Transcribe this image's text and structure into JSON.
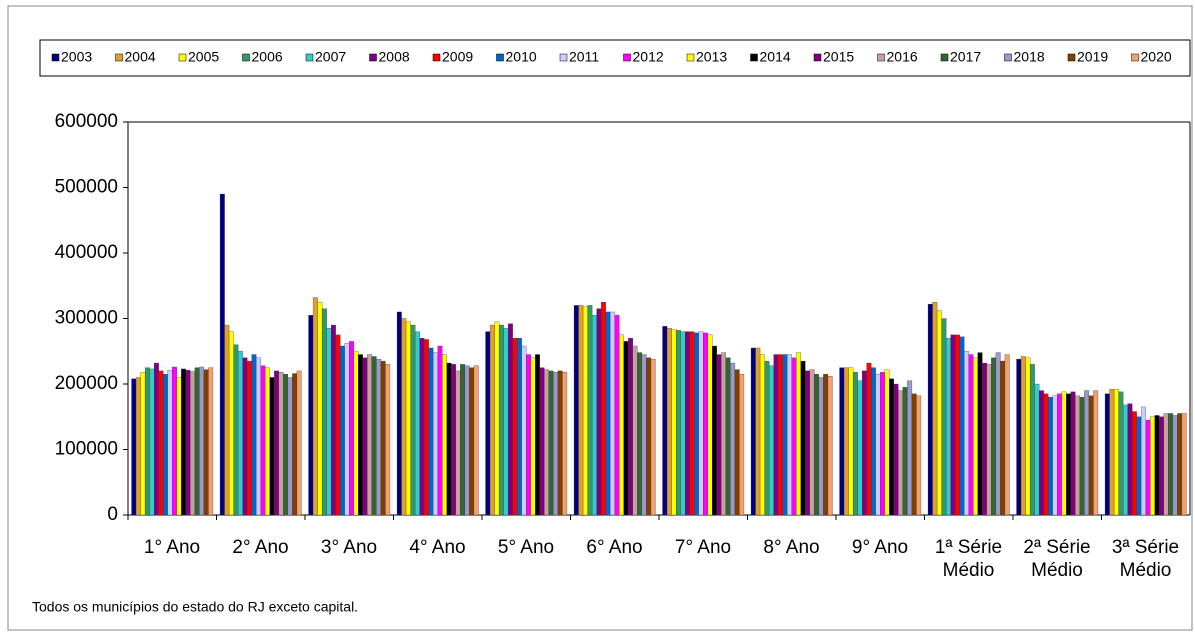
{
  "chart_data": {
    "type": "bar",
    "categories": [
      "1° Ano",
      "2° Ano",
      "3° Ano",
      "4° Ano",
      "5° Ano",
      "6° Ano",
      "7° Ano",
      "8° Ano",
      "9° Ano",
      "1ª Série Médio",
      "2ª Série Médio",
      "3ª Série Médio"
    ],
    "series": [
      {
        "name": "2003",
        "color": "#00007f",
        "values": [
          208000,
          490000,
          305000,
          310000,
          280000,
          320000,
          288000,
          255000,
          225000,
          322000,
          238000,
          185000
        ]
      },
      {
        "name": "2004",
        "color": "#e0a030",
        "values": [
          210000,
          290000,
          332000,
          300000,
          290000,
          320000,
          285000,
          255000,
          225000,
          325000,
          242000,
          192000
        ]
      },
      {
        "name": "2005",
        "color": "#ffff00",
        "values": [
          218000,
          280000,
          325000,
          295000,
          295000,
          318000,
          283000,
          245000,
          225000,
          312000,
          240000,
          192000
        ]
      },
      {
        "name": "2006",
        "color": "#339966",
        "values": [
          225000,
          260000,
          315000,
          290000,
          290000,
          320000,
          282000,
          235000,
          218000,
          300000,
          230000,
          188000
        ]
      },
      {
        "name": "2007",
        "color": "#33cccc",
        "values": [
          223000,
          250000,
          285000,
          280000,
          285000,
          305000,
          280000,
          228000,
          205000,
          270000,
          200000,
          168000
        ]
      },
      {
        "name": "2008",
        "color": "#800080",
        "values": [
          232000,
          240000,
          290000,
          270000,
          292000,
          315000,
          280000,
          245000,
          220000,
          275000,
          190000,
          170000
        ]
      },
      {
        "name": "2009",
        "color": "#ff0000",
        "values": [
          220000,
          235000,
          275000,
          268000,
          270000,
          325000,
          280000,
          245000,
          232000,
          275000,
          185000,
          158000
        ]
      },
      {
        "name": "2010",
        "color": "#0066cc",
        "values": [
          215000,
          245000,
          258000,
          255000,
          270000,
          310000,
          278000,
          245000,
          225000,
          272000,
          180000,
          150000
        ]
      },
      {
        "name": "2011",
        "color": "#ccccff",
        "values": [
          221000,
          240000,
          262000,
          248000,
          258000,
          310000,
          280000,
          245000,
          215000,
          250000,
          182000,
          165000
        ]
      },
      {
        "name": "2012",
        "color": "#ff00ff",
        "values": [
          226000,
          228000,
          265000,
          258000,
          245000,
          305000,
          278000,
          240000,
          218000,
          245000,
          185000,
          145000
        ]
      },
      {
        "name": "2013",
        "color": "#ffff00",
        "values": [
          210000,
          225000,
          250000,
          245000,
          240000,
          275000,
          275000,
          248000,
          222000,
          240000,
          188000,
          150000
        ]
      },
      {
        "name": "2014",
        "color": "#000000",
        "values": [
          223000,
          210000,
          245000,
          232000,
          245000,
          265000,
          258000,
          235000,
          208000,
          248000,
          185000,
          152000
        ]
      },
      {
        "name": "2015",
        "color": "#800080",
        "values": [
          221000,
          220000,
          240000,
          230000,
          225000,
          270000,
          245000,
          220000,
          200000,
          232000,
          188000,
          150000
        ]
      },
      {
        "name": "2016",
        "color": "#c8a0a0",
        "values": [
          219000,
          218000,
          245000,
          220000,
          222000,
          258000,
          248000,
          222000,
          190000,
          230000,
          182000,
          155000
        ]
      },
      {
        "name": "2017",
        "color": "#336633",
        "values": [
          225000,
          215000,
          242000,
          230000,
          220000,
          248000,
          240000,
          215000,
          195000,
          240000,
          180000,
          155000
        ]
      },
      {
        "name": "2018",
        "color": "#9999cc",
        "values": [
          226000,
          210000,
          238000,
          228000,
          218000,
          245000,
          232000,
          210000,
          205000,
          248000,
          190000,
          152000
        ]
      },
      {
        "name": "2019",
        "color": "#804000",
        "values": [
          222000,
          216000,
          235000,
          225000,
          220000,
          240000,
          222000,
          215000,
          185000,
          235000,
          182000,
          155000
        ]
      },
      {
        "name": "2020",
        "color": "#f4a070",
        "values": [
          225000,
          220000,
          230000,
          228000,
          218000,
          238000,
          215000,
          212000,
          182000,
          245000,
          190000,
          155000
        ]
      }
    ],
    "ylim": [
      0,
      600000
    ],
    "yticks": [
      0,
      100000,
      200000,
      300000,
      400000,
      500000,
      600000
    ],
    "grid": false,
    "legend": "top",
    "annotations": [
      "Todos os municípios do estado do RJ exceto capital."
    ]
  }
}
